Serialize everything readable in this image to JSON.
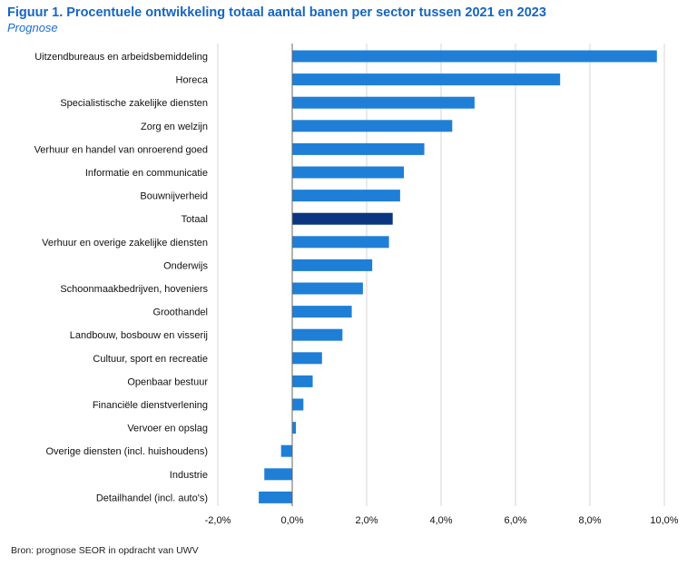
{
  "header": {
    "title": "Figuur 1. Procentuele ontwikkeling totaal aantal banen per sector tussen 2021 en 2023",
    "subtitle": "Prognose"
  },
  "footer": {
    "source": "Bron: prognose SEOR in opdracht van UWV"
  },
  "chart_data": {
    "type": "bar",
    "orientation": "horizontal",
    "categories": [
      "Uitzendbureaus en arbeidsbemiddeling",
      "Horeca",
      "Specialistische zakelijke diensten",
      "Zorg en welzijn",
      "Verhuur en handel van onroerend goed",
      "Informatie en communicatie",
      "Bouwnijverheid",
      "Totaal",
      "Verhuur en overige zakelijke diensten",
      "Onderwijs",
      "Schoonmaakbedrijven, hoveniers",
      "Groothandel",
      "Landbouw, bosbouw en visserij",
      "Cultuur, sport en recreatie",
      "Openbaar bestuur",
      "Financiële dienstverlening",
      "Vervoer en opslag",
      "Overige diensten (incl. huishoudens)",
      "Industrie",
      "Detailhandel (incl. auto's)"
    ],
    "values": [
      9.8,
      7.2,
      4.9,
      4.3,
      3.55,
      3.0,
      2.9,
      2.7,
      2.6,
      2.15,
      1.9,
      1.6,
      1.35,
      0.8,
      0.55,
      0.3,
      0.1,
      -0.3,
      -0.75,
      -0.9
    ],
    "highlight_category": "Totaal",
    "xlim": [
      -2.0,
      10.0
    ],
    "x_ticks": [
      -2,
      0,
      2,
      4,
      6,
      8,
      10
    ],
    "x_tick_labels": [
      "-2,0%",
      "0,0%",
      "2,0%",
      "4,0%",
      "6,0%",
      "8,0%",
      "10,0%"
    ],
    "grid": "vertical",
    "legend": "none",
    "colors": {
      "bar": "#1f7fd6",
      "highlight": "#0a3580",
      "grid": "#d4d4d4",
      "zero_line": "#666666"
    }
  }
}
